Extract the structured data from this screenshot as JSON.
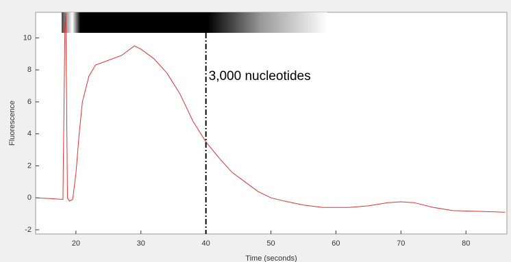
{
  "chart_data": {
    "type": "line",
    "xlabel": "Time (seconds)",
    "ylabel": "Fluorescence",
    "xlim": [
      13.8,
      86.3
    ],
    "ylim": [
      -2.26,
      11.6
    ],
    "xticks": [
      20,
      30,
      40,
      50,
      60,
      70,
      80
    ],
    "yticks": [
      -2,
      0,
      2,
      4,
      6,
      8,
      10
    ],
    "reference_line": {
      "x": 40,
      "label": "3,000 nucleotides"
    },
    "series": [
      {
        "color": "#e03030",
        "x": [
          13.8,
          16,
          18,
          18.3,
          18.45,
          18.7,
          19,
          19.5,
          20,
          20.5,
          21,
          22,
          23,
          25,
          27,
          29,
          30,
          32,
          34,
          36,
          38,
          40,
          42,
          44,
          46,
          48,
          50,
          52,
          55,
          58,
          62,
          65,
          68,
          70,
          72,
          75,
          78,
          82,
          86
        ],
        "values": [
          0.0,
          -0.05,
          -0.1,
          10.5,
          11.5,
          0.0,
          -0.2,
          -0.1,
          1.5,
          4.0,
          6.0,
          7.6,
          8.3,
          8.6,
          8.9,
          9.5,
          9.3,
          8.7,
          7.8,
          6.5,
          4.8,
          3.5,
          2.5,
          1.6,
          1.0,
          0.4,
          0.0,
          -0.2,
          -0.45,
          -0.6,
          -0.6,
          -0.5,
          -0.3,
          -0.25,
          -0.3,
          -0.6,
          -0.8,
          -0.85,
          -0.9
        ]
      }
    ]
  }
}
